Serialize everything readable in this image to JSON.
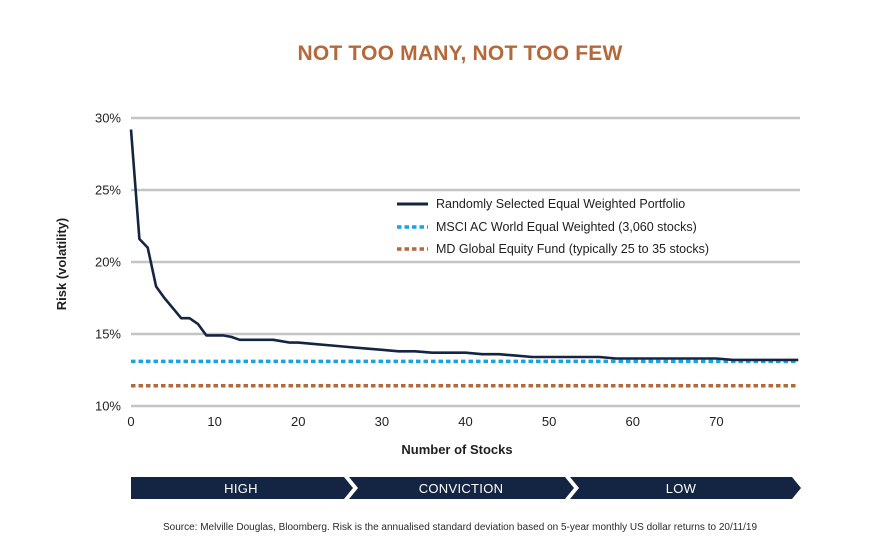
{
  "title": "NOT TOO MANY, NOT TOO FEW",
  "source": "Source: Melville Douglas, Bloomberg. Risk is the annualised standard deviation based on 5-year monthly US dollar returns to 20/11/19",
  "colors": {
    "title": "#b5683a",
    "grid": "#c4c4c4",
    "portfolio": "#142544",
    "msci": "#1aa3e0",
    "md_fund": "#b5683a",
    "band": "#142544"
  },
  "chart_data": {
    "type": "line",
    "xlabel": "Number of Stocks",
    "ylabel": "Risk (volatility)",
    "xlim": [
      0,
      80
    ],
    "ylim": [
      10,
      30
    ],
    "x_ticks": [
      0,
      10,
      20,
      30,
      40,
      50,
      60,
      70
    ],
    "y_ticks": [
      10,
      15,
      20,
      25,
      30
    ],
    "y_tick_labels": [
      "10%",
      "15%",
      "20%",
      "25%",
      "30%"
    ],
    "grid": true,
    "legend_position": "right",
    "series": [
      {
        "name": "Randomly Selected Equal Weighted Portfolio",
        "style": "solid",
        "x": [
          0,
          1,
          2,
          3,
          4,
          5,
          6,
          7,
          8,
          9,
          10,
          11,
          12,
          13,
          14,
          15,
          16,
          17,
          18,
          19,
          20,
          22,
          24,
          26,
          28,
          30,
          32,
          34,
          36,
          38,
          40,
          42,
          44,
          46,
          48,
          50,
          52,
          54,
          56,
          58,
          60,
          62,
          64,
          66,
          68,
          70,
          72,
          74,
          76,
          78,
          80
        ],
        "y": [
          29.2,
          21.6,
          21.0,
          18.3,
          17.5,
          16.8,
          16.1,
          16.1,
          15.7,
          14.9,
          14.9,
          14.9,
          14.8,
          14.6,
          14.6,
          14.6,
          14.6,
          14.6,
          14.5,
          14.4,
          14.4,
          14.3,
          14.2,
          14.1,
          14.0,
          13.9,
          13.8,
          13.8,
          13.7,
          13.7,
          13.7,
          13.6,
          13.6,
          13.5,
          13.4,
          13.4,
          13.4,
          13.4,
          13.4,
          13.3,
          13.3,
          13.3,
          13.3,
          13.3,
          13.3,
          13.3,
          13.2,
          13.2,
          13.2,
          13.2,
          13.2
        ]
      },
      {
        "name": "MSCI AC World Equal Weighted (3,060 stocks)",
        "style": "dotted",
        "x": [
          0,
          80
        ],
        "y": [
          13.1,
          13.1
        ]
      },
      {
        "name": "MD Global Equity Fund (typically 25 to 35 stocks)",
        "style": "dashed",
        "x": [
          0,
          80
        ],
        "y": [
          11.4,
          11.4
        ]
      }
    ]
  },
  "conviction_band": {
    "segments": [
      "HIGH",
      "CONVICTION",
      "LOW"
    ]
  }
}
